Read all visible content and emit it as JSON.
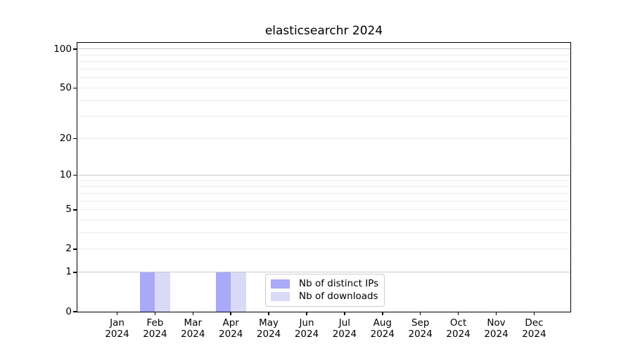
{
  "chart_data": {
    "type": "bar",
    "title": "elasticsearchr 2024",
    "categories": [
      "Jan 2024",
      "Feb 2024",
      "Mar 2024",
      "Apr 2024",
      "May 2024",
      "Jun 2024",
      "Jul 2024",
      "Aug 2024",
      "Sep 2024",
      "Oct 2024",
      "Nov 2024",
      "Dec 2024"
    ],
    "series": [
      {
        "name": "Nb of distinct IPs",
        "color": "#a9a9f7",
        "values": [
          0,
          1,
          0,
          1,
          0,
          0,
          0,
          0,
          0,
          0,
          0,
          0
        ]
      },
      {
        "name": "Nb of downloads",
        "color": "#d9d9f8",
        "values": [
          0,
          1,
          0,
          1,
          0,
          0,
          0,
          0,
          0,
          0,
          0,
          0
        ]
      }
    ],
    "xlabel": "",
    "ylabel": "",
    "ylim": [
      0,
      100
    ],
    "yscale": "log1p",
    "yticks": [
      0,
      1,
      2,
      5,
      10,
      20,
      50,
      100
    ],
    "grid": {
      "major_values": [
        1,
        10,
        100
      ],
      "minor_values": [
        2,
        3,
        4,
        5,
        6,
        7,
        8,
        9,
        20,
        30,
        40,
        50,
        60,
        70,
        80,
        90
      ],
      "major_color": "#c8c8c8",
      "minor_color": "#ececec"
    },
    "legend": {
      "position": "lower center",
      "entries": [
        {
          "label": "Nb of distinct IPs",
          "color": "#a9a9f7"
        },
        {
          "label": "Nb of downloads",
          "color": "#d9d9f8"
        }
      ]
    }
  },
  "colors": {
    "background": "#ffffff",
    "axis": "#000000",
    "text": "#000000"
  }
}
